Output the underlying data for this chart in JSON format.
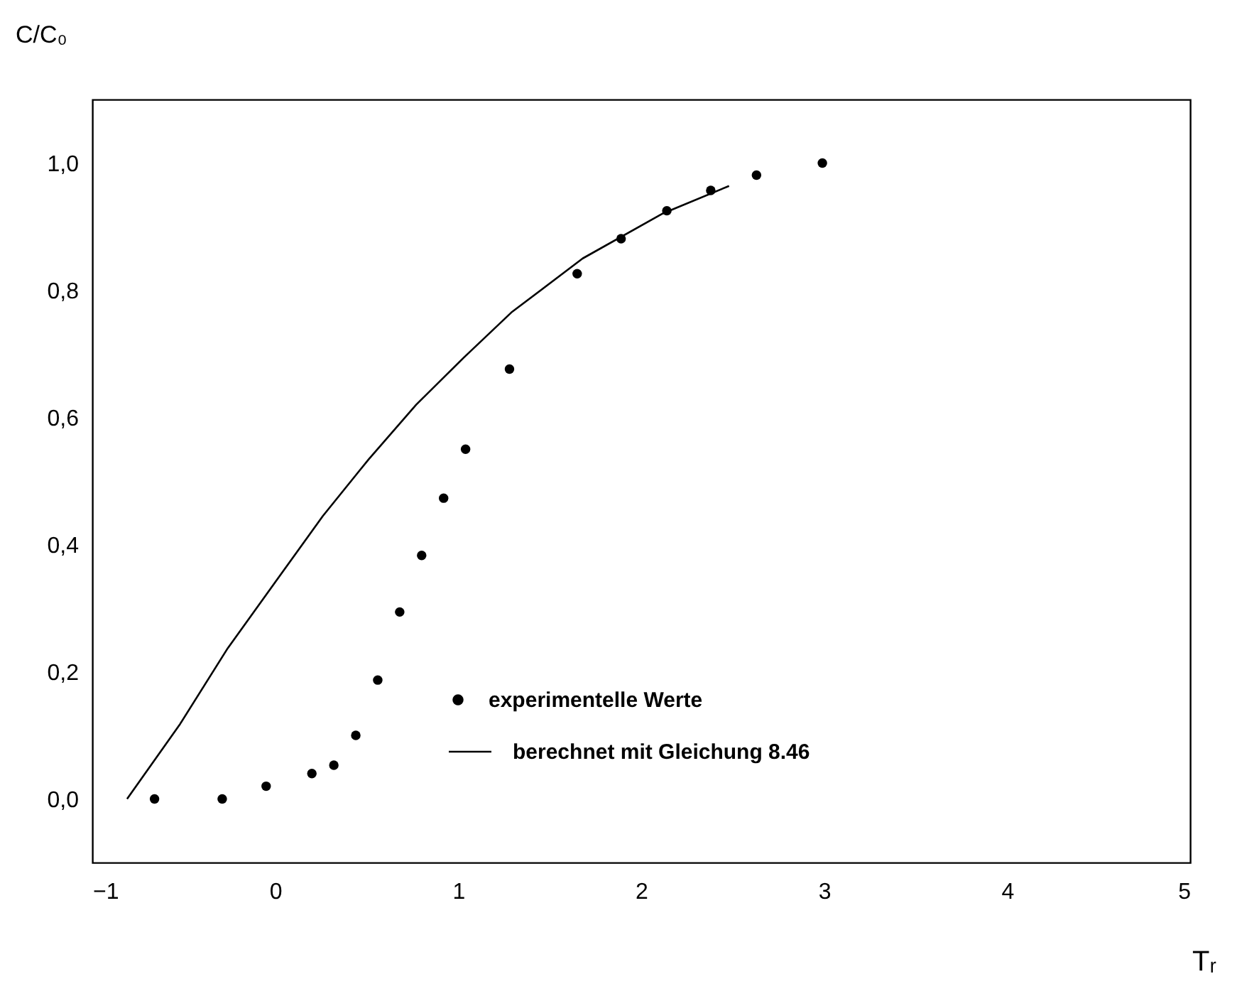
{
  "chart_data": {
    "type": "scatter",
    "xlabel": "Tᵣ",
    "ylabel": "C/C₀",
    "xlim": [
      -1,
      5
    ],
    "xticks": [
      -1,
      0,
      1,
      2,
      3,
      4,
      5
    ],
    "ylim": [
      -0.1,
      1.1
    ],
    "yticks": [
      {
        "value": 0,
        "label": "0,0"
      },
      {
        "value": 0.2,
        "label": "0,2"
      },
      {
        "value": 0.4,
        "label": "0,4"
      },
      {
        "value": 0.6,
        "label": "0,6"
      },
      {
        "value": 0.8,
        "label": "0,8"
      },
      {
        "value": 1.0,
        "label": "1,0"
      }
    ],
    "grid": false,
    "legend": "bottom",
    "series": [
      {
        "name": "experimentelle Werte",
        "marker": "circle",
        "color": "#000000",
        "x": [
          -0.66,
          -0.29,
          -0.05,
          0.2,
          0.32,
          0.44,
          0.56,
          0.68,
          0.8,
          0.92,
          1.04,
          1.28,
          1.65,
          1.89,
          2.14,
          2.38,
          2.63,
          2.99
        ],
        "values": [
          0.0,
          0.0,
          0.02,
          0.04,
          0.053,
          0.1,
          0.187,
          0.294,
          0.383,
          0.473,
          0.55,
          0.676,
          0.826,
          0.881,
          0.925,
          0.957,
          0.981,
          1.0
        ]
      },
      {
        "name": "berechnet mit Gleichung 8.46",
        "type": "line",
        "line_style": "solid",
        "color": "#000000",
        "x": [
          -0.81,
          -0.52,
          -0.26,
          0.0,
          0.26,
          0.51,
          0.77,
          1.03,
          1.29,
          1.68,
          2.12,
          2.48
        ],
        "values": [
          0.0,
          0.118,
          0.237,
          0.341,
          0.445,
          0.534,
          0.62,
          0.694,
          0.765,
          0.85,
          0.921,
          0.964
        ]
      }
    ]
  }
}
